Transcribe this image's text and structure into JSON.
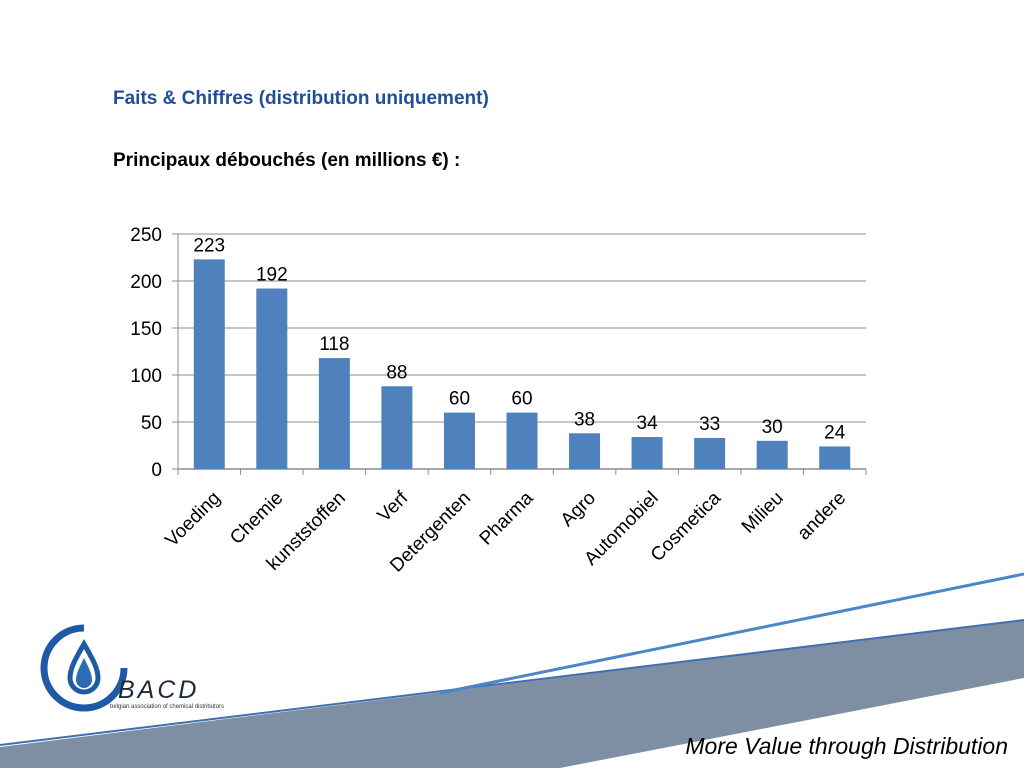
{
  "heading": "Faits & Chiffres (distribution uniquement)",
  "subheading": "Principaux débouchés (en millions €) :",
  "tagline": "More Value through Distribution",
  "logo": {
    "name": "BACD",
    "subtitle": "belgian association of chemical distributors",
    "icon": "water-drop-logo-icon"
  },
  "colors": {
    "bar": "#4f81bd",
    "heading": "#1f4e9c",
    "footer_band": "#7e8ea3",
    "footer_line": "#4a7fc1"
  },
  "chart_data": {
    "type": "bar",
    "categories": [
      "Voeding",
      "Chemie",
      "kunststoffen",
      "Verf",
      "Detergenten",
      "Pharma",
      "Agro",
      "Automobiel",
      "Cosmetica",
      "Milieu",
      "andere"
    ],
    "values": [
      223,
      192,
      118,
      88,
      60,
      60,
      38,
      34,
      33,
      30,
      24
    ],
    "yticks": [
      0,
      50,
      100,
      150,
      200,
      250
    ],
    "ylim": [
      0,
      250
    ],
    "grid": true,
    "legend": "none",
    "data_labels": true
  }
}
